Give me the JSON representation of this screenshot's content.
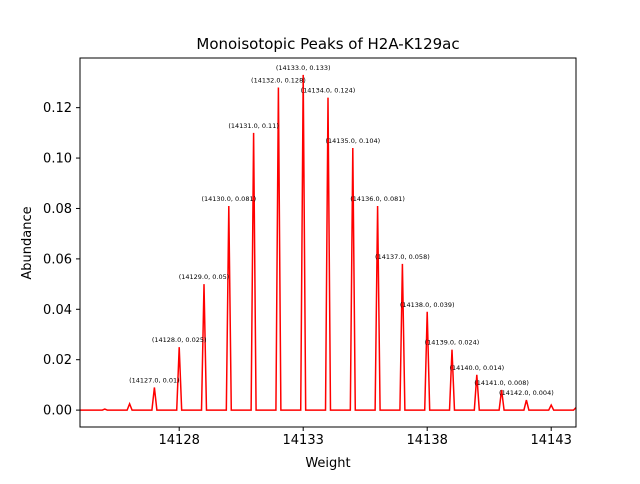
{
  "chart_data": {
    "type": "line",
    "title": "Monoisotopic Peaks of H2A-K129ac",
    "xlabel": "Weight",
    "ylabel": "Abundance",
    "xlim": [
      14124,
      14144
    ],
    "ylim": [
      -0.0067,
      0.1397
    ],
    "xticks": [
      14128,
      14133,
      14138,
      14143
    ],
    "xtick_labels": [
      "14128",
      "14133",
      "14138",
      "14143"
    ],
    "yticks": [
      0.0,
      0.02,
      0.04,
      0.06,
      0.08,
      0.1,
      0.12
    ],
    "ytick_labels": [
      "0.00",
      "0.02",
      "0.04",
      "0.06",
      "0.08",
      "0.10",
      "0.12"
    ],
    "grid": false,
    "line_color": "#ff0000",
    "series": [
      {
        "x": [
          14125,
          14126,
          14127,
          14128,
          14129,
          14130,
          14131,
          14132,
          14133,
          14134,
          14135,
          14136,
          14137,
          14138,
          14139,
          14140,
          14141,
          14142,
          14143,
          14144
        ],
        "y": [
          0.0004,
          0.0025,
          0.009,
          0.025,
          0.05,
          0.081,
          0.11,
          0.128,
          0.133,
          0.124,
          0.104,
          0.081,
          0.058,
          0.039,
          0.024,
          0.014,
          0.008,
          0.004,
          0.002,
          0.001
        ]
      }
    ],
    "annotations": [
      {
        "x": 14127,
        "y": 0.009,
        "text": "(14127.0, 0.01)"
      },
      {
        "x": 14128,
        "y": 0.025,
        "text": "(14128.0, 0.025)"
      },
      {
        "x": 14129,
        "y": 0.05,
        "text": "(14129.0, 0.05)"
      },
      {
        "x": 14130,
        "y": 0.081,
        "text": "(14130.0, 0.081)"
      },
      {
        "x": 14131,
        "y": 0.11,
        "text": "(14131.0, 0.11)"
      },
      {
        "x": 14132,
        "y": 0.128,
        "text": "(14132.0, 0.128)"
      },
      {
        "x": 14133,
        "y": 0.133,
        "text": "(14133.0, 0.133)"
      },
      {
        "x": 14134,
        "y": 0.124,
        "text": "(14134.0, 0.124)"
      },
      {
        "x": 14135,
        "y": 0.104,
        "text": "(14135.0, 0.104)"
      },
      {
        "x": 14136,
        "y": 0.081,
        "text": "(14136.0, 0.081)"
      },
      {
        "x": 14137,
        "y": 0.058,
        "text": "(14137.0, 0.058)"
      },
      {
        "x": 14138,
        "y": 0.039,
        "text": "(14138.0, 0.039)"
      },
      {
        "x": 14139,
        "y": 0.024,
        "text": "(14139.0, 0.024)"
      },
      {
        "x": 14140,
        "y": 0.014,
        "text": "(14140.0, 0.014)"
      },
      {
        "x": 14141,
        "y": 0.008,
        "text": "(14141.0, 0.008)"
      },
      {
        "x": 14142,
        "y": 0.004,
        "text": "(14142.0, 0.004)"
      }
    ]
  }
}
